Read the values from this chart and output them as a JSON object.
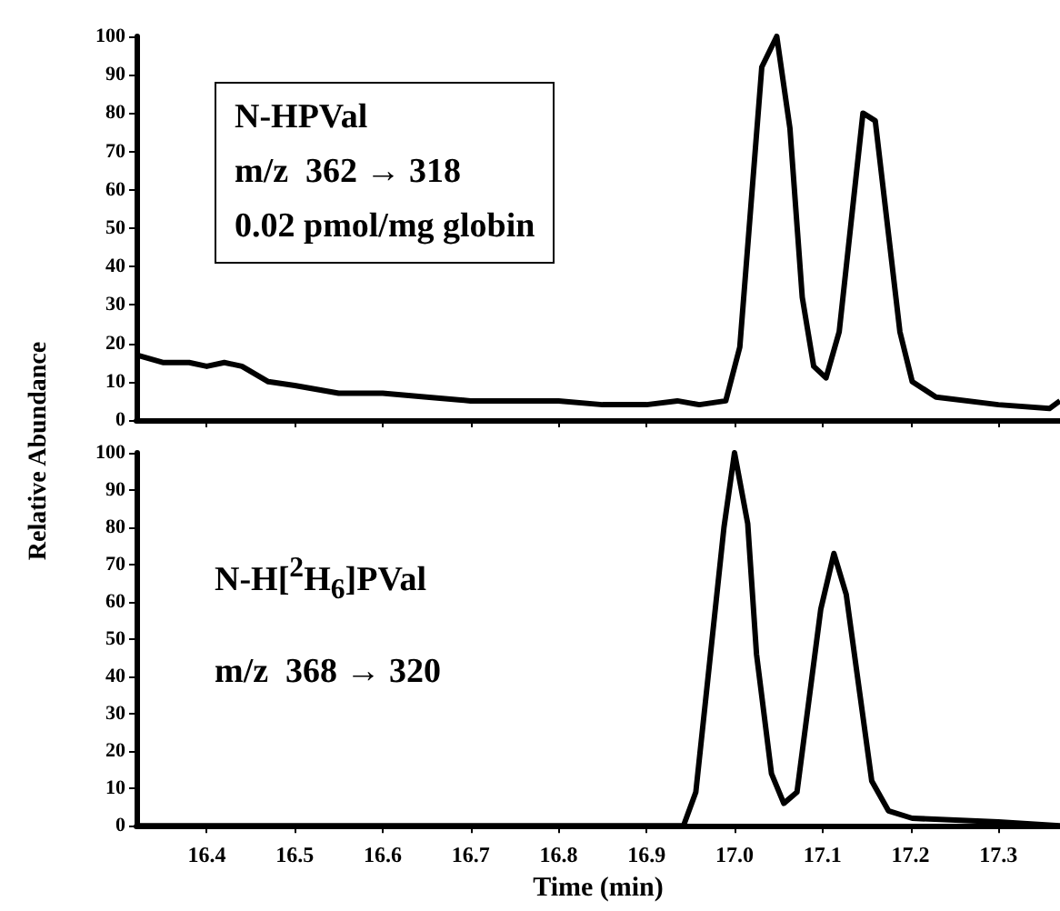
{
  "chart_data": [
    {
      "type": "line",
      "ylabel": "Relative Abundance",
      "annotations": [
        "N-HPVal",
        "m/z  362 → 318",
        "0.02 pmol/mg globin"
      ],
      "xlim": [
        16.32,
        17.37
      ],
      "xticks": [
        16.4,
        16.5,
        16.6,
        16.7,
        16.8,
        16.9,
        17.0,
        17.1,
        17.2,
        17.3
      ],
      "ylim": [
        0,
        100
      ],
      "yticks": [
        0,
        10,
        20,
        30,
        40,
        50,
        60,
        70,
        80,
        90,
        100
      ],
      "tick_labels": "y",
      "grid": false,
      "legend": false,
      "marker": "none",
      "line_style": "solid",
      "series": [
        {
          "color": "#000000",
          "x": [
            16.32,
            16.35,
            16.38,
            16.4,
            16.42,
            16.44,
            16.47,
            16.5,
            16.55,
            16.6,
            16.65,
            16.7,
            16.75,
            16.8,
            16.85,
            16.9,
            16.935,
            16.96,
            16.99,
            17.006,
            17.031,
            17.048,
            17.063,
            17.077,
            17.09,
            17.104,
            17.119,
            17.146,
            17.16,
            17.188,
            17.202,
            17.229,
            17.3,
            17.358,
            17.37
          ],
          "values": [
            17,
            15,
            15,
            14,
            15,
            14,
            10,
            9,
            7,
            7,
            6,
            5,
            5,
            5,
            4,
            4,
            5,
            4,
            5,
            19,
            92,
            100,
            76,
            32,
            14,
            11,
            23,
            80,
            78,
            23,
            10,
            6,
            4,
            3,
            5
          ]
        }
      ]
    },
    {
      "type": "line",
      "xlabel": "Time (min)",
      "annotations": [
        "N-H[$^{2}$H$_{6}$]PVal",
        "m/z  368 → 320"
      ],
      "xlim": [
        16.32,
        17.37
      ],
      "xticks": [
        16.4,
        16.5,
        16.6,
        16.7,
        16.8,
        16.9,
        {
          "value": 17.0,
          "label": "17.0"
        },
        17.1,
        17.2,
        17.3
      ],
      "ylim": [
        0,
        100
      ],
      "yticks": [
        0,
        10,
        20,
        30,
        40,
        50,
        60,
        70,
        80,
        90,
        100
      ],
      "grid": false,
      "legend": false,
      "marker": "none",
      "line_style": "solid",
      "series": [
        {
          "color": "#000000",
          "x": [
            16.32,
            16.5,
            16.7,
            16.9,
            16.942,
            16.956,
            16.988,
            17.0,
            17.015,
            17.025,
            17.042,
            17.056,
            17.071,
            17.098,
            17.113,
            17.127,
            17.156,
            17.175,
            17.202,
            17.3,
            17.37
          ],
          "values": [
            0,
            0,
            0,
            0,
            0,
            9,
            80,
            100,
            81,
            46,
            14,
            6,
            9,
            58,
            73,
            62,
            12,
            4,
            2,
            1,
            0
          ]
        }
      ]
    }
  ]
}
